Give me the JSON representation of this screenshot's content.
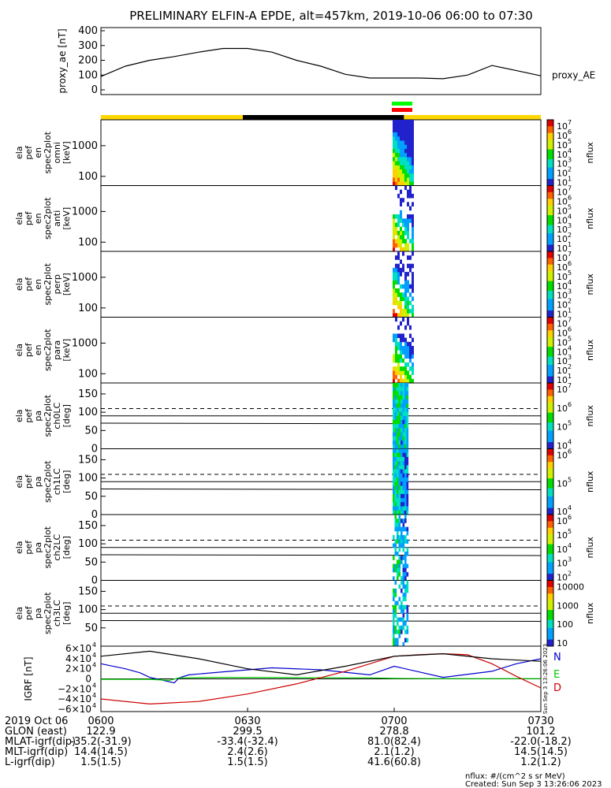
{
  "title": "PRELIMINARY ELFIN-A EPDE, alt=457km, 2019-10-06 06:00 to 07:30",
  "chart_data": [
    {
      "type": "line",
      "panel": "proxy_ae",
      "ylabel": "proxy_ae [nT]",
      "legend": "proxy_AE",
      "ylim": [
        0,
        400
      ],
      "yticks": [
        "400",
        "300",
        "200",
        "100",
        "0"
      ],
      "x_minutes": [
        0,
        5,
        10,
        15,
        20,
        25,
        30,
        35,
        40,
        45,
        50,
        55,
        60,
        65,
        70,
        75,
        80,
        85,
        90
      ],
      "values": [
        90,
        160,
        200,
        225,
        255,
        280,
        280,
        255,
        200,
        160,
        105,
        80,
        80,
        80,
        75,
        100,
        165,
        130,
        95
      ],
      "color": "#000000"
    },
    {
      "type": "heatmap",
      "panel": "omni energy spectrogram",
      "ylabel": [
        "ela",
        "pef",
        "en",
        "spec2plot",
        "omni",
        "[keV]"
      ],
      "ylim": [
        50,
        7000
      ],
      "yscale": "log",
      "yticks": [
        "1000",
        "100"
      ],
      "colorbar": {
        "label": "nflux",
        "scale": "log",
        "range": [
          1,
          7
        ],
        "ticks": [
          "10",
          "10",
          "10",
          "10",
          "10",
          "10",
          "10"
        ],
        "exponents": [
          "7",
          "6",
          "5",
          "4",
          "3",
          "2",
          "1"
        ]
      }
    },
    {
      "type": "heatmap",
      "panel": "anti energy spectrogram",
      "ylabel": [
        "ela",
        "pef",
        "en",
        "spec2plot",
        "anti",
        "[keV]"
      ],
      "ylim": [
        50,
        7000
      ],
      "yscale": "log",
      "yticks": [
        "1000",
        "100"
      ],
      "colorbar": {
        "label": "nflux",
        "scale": "log",
        "range": [
          1,
          7
        ],
        "ticks": [
          "10",
          "10",
          "10",
          "10",
          "10",
          "10",
          "10"
        ],
        "exponents": [
          "7",
          "6",
          "5",
          "4",
          "3",
          "2",
          "1"
        ]
      }
    },
    {
      "type": "heatmap",
      "panel": "perp energy spectrogram",
      "ylabel": [
        "ela",
        "pef",
        "en",
        "spec2plot",
        "perp",
        "[keV]"
      ],
      "ylim": [
        50,
        7000
      ],
      "yscale": "log",
      "yticks": [
        "1000",
        "100"
      ],
      "colorbar": {
        "label": "nflux",
        "scale": "log",
        "range": [
          1,
          7
        ],
        "ticks": [
          "10",
          "10",
          "10",
          "10",
          "10",
          "10",
          "10"
        ],
        "exponents": [
          "7",
          "6",
          "5",
          "4",
          "3",
          "2",
          "1"
        ]
      }
    },
    {
      "type": "heatmap",
      "panel": "para energy spectrogram",
      "ylabel": [
        "ela",
        "pef",
        "en",
        "spec2plot",
        "para",
        "[keV]"
      ],
      "ylim": [
        50,
        7000
      ],
      "yscale": "log",
      "yticks": [
        "1000",
        "100"
      ],
      "colorbar": {
        "label": "nflux",
        "scale": "log",
        "range": [
          1,
          7
        ],
        "ticks": [
          "10",
          "10",
          "10",
          "10",
          "10",
          "10",
          "10"
        ],
        "exponents": [
          "7",
          "6",
          "5",
          "4",
          "3",
          "2",
          "1"
        ]
      }
    },
    {
      "type": "heatmap",
      "panel": "ch0LC pitch-angle spectrogram",
      "ylabel": [
        "ela",
        "pef",
        "pa",
        "spec2plot",
        "ch0LC",
        "[deg]"
      ],
      "ylim": [
        0,
        180
      ],
      "yticks": [
        "150",
        "100",
        "50",
        "0"
      ],
      "colorbar": {
        "label": "nflux",
        "scale": "log",
        "range": [
          4,
          7
        ],
        "ticks": [
          "10",
          "10",
          "10",
          "10"
        ],
        "exponents": [
          "7",
          "6",
          "5",
          "4"
        ]
      }
    },
    {
      "type": "heatmap",
      "panel": "ch1LC pitch-angle spectrogram",
      "ylabel": [
        "ela",
        "pef",
        "pa",
        "spec2plot",
        "ch1LC",
        "[deg]"
      ],
      "ylim": [
        0,
        180
      ],
      "yticks": [
        "150",
        "100",
        "50",
        "0"
      ],
      "colorbar": {
        "label": "nflux",
        "scale": "log",
        "range": [
          3.5,
          6.5
        ],
        "ticks": [
          "10",
          "10",
          "10"
        ],
        "exponents": [
          "6",
          "5",
          "4"
        ]
      }
    },
    {
      "type": "heatmap",
      "panel": "ch2LC pitch-angle spectrogram",
      "ylabel": [
        "ela",
        "pef",
        "pa",
        "spec2plot",
        "ch2LC",
        "[deg]"
      ],
      "ylim": [
        0,
        180
      ],
      "yticks": [
        "150",
        "100",
        "50",
        "0"
      ],
      "colorbar": {
        "label": "nflux",
        "scale": "log",
        "range": [
          2,
          6.5
        ],
        "ticks": [
          "10",
          "10",
          "10",
          "10",
          "10"
        ],
        "exponents": [
          "6",
          "5",
          "4",
          "3",
          "2"
        ]
      }
    },
    {
      "type": "heatmap",
      "panel": "ch3LC pitch-angle spectrogram",
      "ylabel": [
        "ela",
        "pef",
        "pa",
        "spec2plot",
        "ch3LC",
        "[deg]"
      ],
      "ylim": [
        0,
        180
      ],
      "yticks": [
        "150",
        "100",
        "50"
      ],
      "colorbar": {
        "label": "nflux",
        "scale": "log",
        "range": [
          1,
          4
        ],
        "ticks": [
          "10000",
          "1000",
          "100",
          "10"
        ]
      }
    },
    {
      "type": "line",
      "panel": "IGRF",
      "ylabel": "IGRF [nT]",
      "ylim": [
        -65000,
        65000
      ],
      "yticks": [
        "6×10",
        "4×10",
        "2×10",
        "0",
        "−2×10",
        "−4×10",
        "−6×10"
      ],
      "ytick_exponent": "4",
      "series": [
        {
          "name": "N",
          "color": "#0000cc",
          "x_minutes": [
            0,
            5,
            8,
            10,
            15,
            16,
            18,
            25,
            35,
            45,
            55,
            60,
            70,
            80,
            85,
            90
          ],
          "values": [
            30000,
            20000,
            12000,
            3000,
            -8000,
            2000,
            8000,
            14000,
            22000,
            18000,
            8000,
            25000,
            3000,
            15000,
            30000,
            40000
          ]
        },
        {
          "name": "E",
          "color": "#00cc00",
          "x_minutes": [
            0,
            10,
            14,
            16,
            25,
            40,
            55,
            60,
            70,
            80,
            90
          ],
          "values": [
            -1000,
            -1000,
            -3000,
            2000,
            3000,
            2500,
            2000,
            1000,
            500,
            500,
            500
          ]
        },
        {
          "name": "D",
          "color": "#cc0000",
          "x_minutes": [
            0,
            10,
            20,
            30,
            40,
            50,
            60,
            65,
            70,
            75,
            80,
            85,
            90
          ],
          "values": [
            -40000,
            -50000,
            -45000,
            -30000,
            -10000,
            15000,
            45000,
            48000,
            50000,
            48000,
            30000,
            5000,
            -18000
          ]
        },
        {
          "name": "",
          "color": "#000000",
          "x_minutes": [
            0,
            10,
            20,
            30,
            40,
            50,
            60,
            70,
            80,
            90
          ],
          "values": [
            45000,
            55000,
            40000,
            20000,
            8000,
            25000,
            45000,
            50000,
            40000,
            35000
          ]
        }
      ]
    }
  ],
  "x_axis": {
    "rows": [
      {
        "label": "2019 Oct 06",
        "values": [
          "0600",
          "0630",
          "0700",
          "0730"
        ]
      },
      {
        "label": "GLON (east)",
        "values": [
          "122.9",
          "299.5",
          "278.8",
          "101.2"
        ]
      },
      {
        "label": "MLAT-igrf(dip)",
        "values": [
          "-35.2(-31.9)",
          "-33.4(-32.4)",
          "81.0(82.4)",
          "-22.0(-18.2)"
        ]
      },
      {
        "label": "MLT-igrf(dip)",
        "values": [
          "14.4(14.5)",
          "2.4(2.6)",
          "2.1(1.2)",
          "14.5(14.5)"
        ]
      },
      {
        "label": "L-igrf(dip)",
        "values": [
          "1.5(1.5)",
          "1.5(1.5)",
          "41.6(60.8)",
          "1.2(1.2)"
        ]
      }
    ]
  },
  "footer": {
    "units": "nflux: #/(cm^2 s sr MeV)",
    "created": "Created: Sun Sep  3 13:26:06 2023",
    "vertical_stamp": "Sun Sep  3 13:26:06 2023"
  },
  "colors": {
    "ephemeris_day": "#ffd700",
    "ephemeris_night": "#000000",
    "segment_green": "#00ff00",
    "segment_red": "#ff0000"
  }
}
